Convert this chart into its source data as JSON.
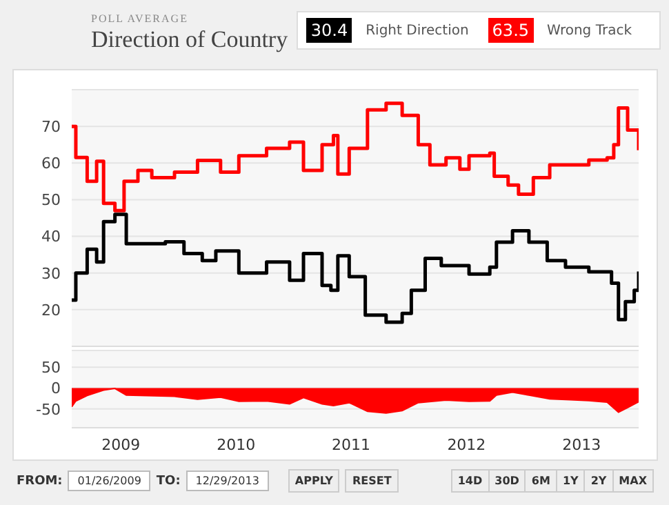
{
  "chart_data": [
    {
      "type": "step",
      "title": "Direction of Country",
      "subtitle": "POLL AVERAGE",
      "annotations": [
        "30.4",
        "63.5"
      ],
      "legend": "top right",
      "grid": "y",
      "tick_labels": "y",
      "xlim": [
        "2009-01-26",
        "2013-12-29"
      ],
      "ylim": [
        10,
        80
      ],
      "yticks": [
        20,
        30,
        40,
        50,
        60,
        70
      ],
      "series": [
        {
          "name": "Right Direction",
          "color": "#000000",
          "x": [
            "2009-01-26",
            "2009-02-08",
            "2009-03-16",
            "2009-04-15",
            "2009-05-07",
            "2009-06-12",
            "2009-07-18",
            "2009-09-22",
            "2009-11-19",
            "2010-01-17",
            "2010-03-16",
            "2010-04-28",
            "2010-07-10",
            "2010-10-06",
            "2010-12-18",
            "2011-01-31",
            "2011-03-31",
            "2011-04-28",
            "2011-05-20",
            "2011-06-25",
            "2011-08-15",
            "2011-10-20",
            "2011-12-10",
            "2012-01-08",
            "2012-02-21",
            "2012-04-12",
            "2012-07-09",
            "2012-09-13",
            "2012-10-04",
            "2012-11-24",
            "2013-01-15",
            "2013-03-14",
            "2013-05-11",
            "2013-07-24",
            "2013-10-04",
            "2013-10-26",
            "2013-11-17",
            "2013-12-15",
            "2013-12-29"
          ],
          "values": [
            22.6,
            30,
            36.5,
            33,
            44,
            46,
            38,
            38,
            38.5,
            35.3,
            33.4,
            36,
            30,
            33,
            28,
            35.3,
            26.6,
            25.3,
            34.7,
            29,
            18.5,
            16.6,
            19,
            25.3,
            34,
            32,
            29.7,
            31.6,
            38.4,
            41.5,
            38.4,
            33.4,
            31.6,
            30.3,
            27.2,
            17.3,
            22.2,
            25.3,
            30.4
          ]
        },
        {
          "name": "Wrong Track",
          "color": "#ff0000",
          "x": [
            "2009-01-26",
            "2009-02-08",
            "2009-03-16",
            "2009-04-15",
            "2009-05-07",
            "2009-06-12",
            "2009-07-11",
            "2009-08-24",
            "2009-10-07",
            "2009-12-18",
            "2010-03-01",
            "2010-05-13",
            "2010-07-10",
            "2010-10-06",
            "2010-12-18",
            "2011-01-31",
            "2011-03-31",
            "2011-05-06",
            "2011-05-20",
            "2011-06-25",
            "2011-08-22",
            "2011-10-20",
            "2011-12-10",
            "2012-01-30",
            "2012-03-07",
            "2012-04-27",
            "2012-06-10",
            "2012-07-09",
            "2012-09-13",
            "2012-09-27",
            "2012-11-10",
            "2012-12-13",
            "2013-01-29",
            "2013-03-22",
            "2013-05-26",
            "2013-07-24",
            "2013-09-20",
            "2013-10-11",
            "2013-10-26",
            "2013-11-24",
            "2013-12-29"
          ],
          "values": [
            70,
            61.5,
            55,
            60.5,
            49,
            47,
            55,
            58,
            56,
            57.5,
            60.7,
            57.5,
            62,
            64,
            65.7,
            58,
            65,
            67.5,
            57,
            64,
            74.5,
            76.3,
            73,
            65,
            59.5,
            61.4,
            58.3,
            62,
            62.7,
            56.4,
            54,
            51.5,
            56,
            59.5,
            59.5,
            60.8,
            61.4,
            65,
            75,
            69,
            63.5
          ]
        }
      ]
    },
    {
      "type": "area",
      "grid": "y",
      "xlim": [
        "2009-01-26",
        "2013-12-29"
      ],
      "xticks": [
        {
          "value": "2009-07-01",
          "label": "2009"
        },
        {
          "value": "2010-07-01",
          "label": "2010"
        },
        {
          "value": "2011-07-01",
          "label": "2011"
        },
        {
          "value": "2012-07-01",
          "label": "2012"
        },
        {
          "value": "2013-07-01",
          "label": "2013"
        }
      ],
      "ylim": [
        -95,
        90
      ],
      "yticks": [
        -50,
        0,
        50
      ],
      "x": [
        "2009-01-26",
        "2009-02-08",
        "2009-03-16",
        "2009-05-07",
        "2009-06-12",
        "2009-07-18",
        "2009-09-22",
        "2009-12-18",
        "2010-03-01",
        "2010-05-13",
        "2010-07-10",
        "2010-10-06",
        "2010-12-18",
        "2011-01-31",
        "2011-03-31",
        "2011-05-06",
        "2011-06-25",
        "2011-08-22",
        "2011-10-20",
        "2011-12-10",
        "2012-01-30",
        "2012-04-27",
        "2012-07-09",
        "2012-09-13",
        "2012-10-04",
        "2012-11-24",
        "2013-01-15",
        "2013-03-22",
        "2013-05-26",
        "2013-07-24",
        "2013-09-20",
        "2013-10-26",
        "2013-11-24",
        "2013-12-29"
      ],
      "values": [
        -45,
        -31,
        -18,
        -5,
        -1,
        -17,
        -18,
        -20,
        -27,
        -22,
        -32,
        -31,
        -38,
        -23,
        -38,
        -42,
        -35,
        -56,
        -60,
        -54,
        -35,
        -29,
        -32,
        -31,
        -17,
        -10,
        -17,
        -26,
        -28,
        -30,
        -34,
        -58,
        -47,
        -33
      ],
      "color": "#ff0000"
    },
    {
      "type": "other",
      "annotations": [
        "FROM:",
        "01/26/2009",
        "TO:",
        "12/29/2013",
        "APPLY",
        "RESET",
        "14D",
        "30D",
        "6M",
        "1Y",
        "2Y",
        "MAX"
      ]
    }
  ]
}
